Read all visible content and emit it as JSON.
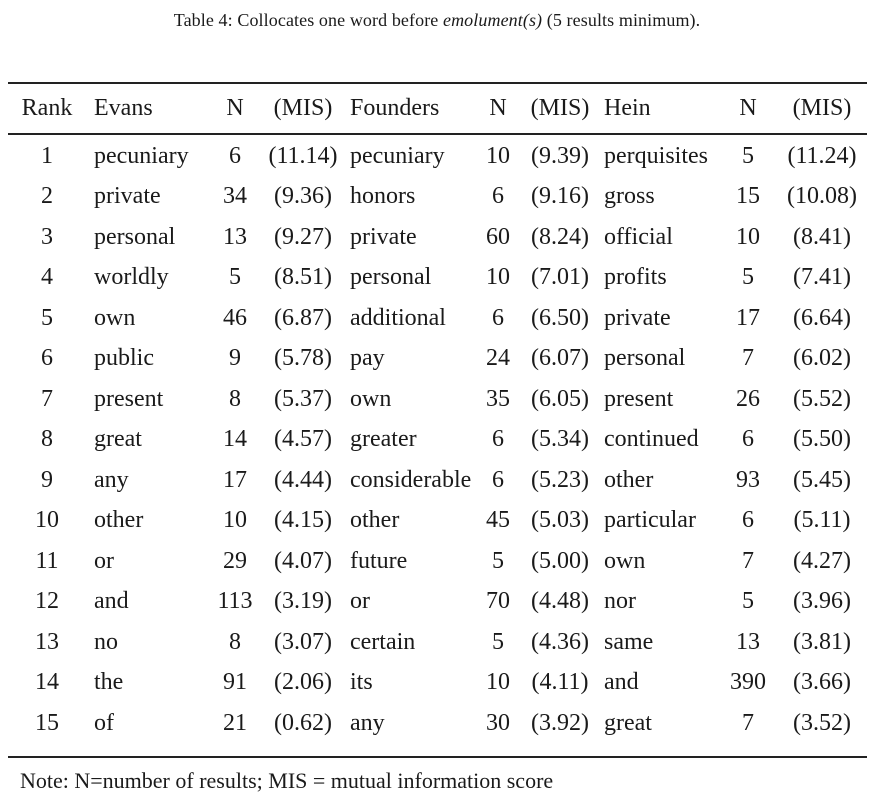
{
  "caption": {
    "prefix": "Table 4: Collocates one word before ",
    "term": "emolument(s)",
    "suffix": " (5 results minimum)."
  },
  "table": {
    "headers": [
      "Rank",
      "Evans",
      "N",
      "(MIS)",
      "Founders",
      "N",
      "(MIS)",
      "Hein",
      "N",
      "(MIS)"
    ],
    "rows": [
      [
        "1",
        "pecuniary",
        "6",
        "(11.14)",
        "pecuniary",
        "10",
        "(9.39)",
        "perquisites",
        "5",
        "(11.24)"
      ],
      [
        "2",
        "private",
        "34",
        "(9.36)",
        "honors",
        "6",
        "(9.16)",
        "gross",
        "15",
        "(10.08)"
      ],
      [
        "3",
        "personal",
        "13",
        "(9.27)",
        "private",
        "60",
        "(8.24)",
        "official",
        "10",
        "(8.41)"
      ],
      [
        "4",
        "worldly",
        "5",
        "(8.51)",
        "personal",
        "10",
        "(7.01)",
        "profits",
        "5",
        "(7.41)"
      ],
      [
        "5",
        "own",
        "46",
        "(6.87)",
        "additional",
        "6",
        "(6.50)",
        "private",
        "17",
        "(6.64)"
      ],
      [
        "6",
        "public",
        "9",
        "(5.78)",
        "pay",
        "24",
        "(6.07)",
        "personal",
        "7",
        "(6.02)"
      ],
      [
        "7",
        "present",
        "8",
        "(5.37)",
        "own",
        "35",
        "(6.05)",
        "present",
        "26",
        "(5.52)"
      ],
      [
        "8",
        "great",
        "14",
        "(4.57)",
        "greater",
        "6",
        "(5.34)",
        "continued",
        "6",
        "(5.50)"
      ],
      [
        "9",
        "any",
        "17",
        "(4.44)",
        "considerable",
        "6",
        "(5.23)",
        "other",
        "93",
        "(5.45)"
      ],
      [
        "10",
        "other",
        "10",
        "(4.15)",
        "other",
        "45",
        "(5.03)",
        "particular",
        "6",
        "(5.11)"
      ],
      [
        "11",
        "or",
        "29",
        "(4.07)",
        "future",
        "5",
        "(5.00)",
        "own",
        "7",
        "(4.27)"
      ],
      [
        "12",
        "and",
        "113",
        "(3.19)",
        "or",
        "70",
        "(4.48)",
        "nor",
        "5",
        "(3.96)"
      ],
      [
        "13",
        "no",
        "8",
        "(3.07)",
        "certain",
        "5",
        "(4.36)",
        "same",
        "13",
        "(3.81)"
      ],
      [
        "14",
        "the",
        "91",
        "(2.06)",
        "its",
        "10",
        "(4.11)",
        "and",
        "390",
        "(3.66)"
      ],
      [
        "15",
        "of",
        "21",
        "(0.62)",
        "any",
        "30",
        "(3.92)",
        "great",
        "7",
        "(3.52)"
      ]
    ]
  },
  "note": "Note: N=number of results; MIS = mutual information score"
}
